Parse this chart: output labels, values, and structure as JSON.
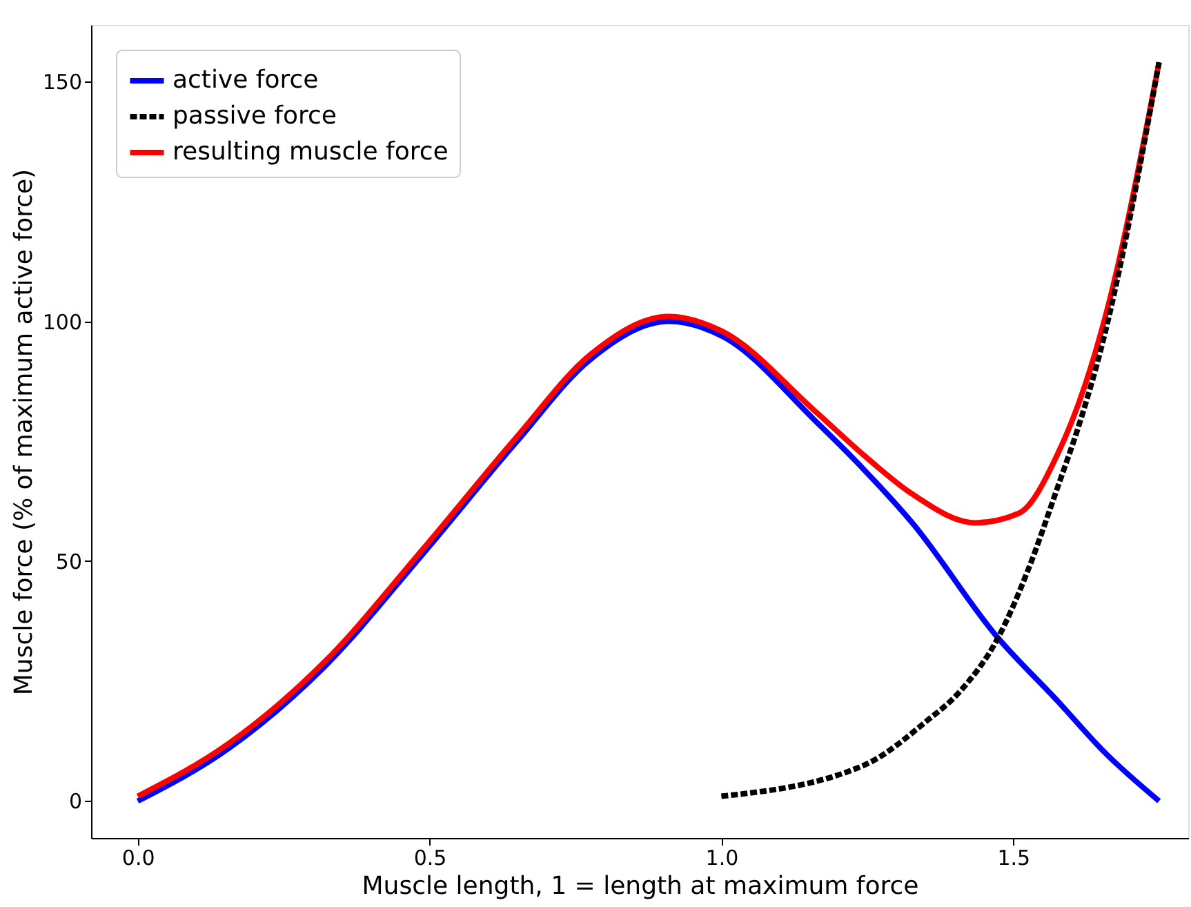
{
  "chart_data": {
    "type": "line",
    "xlabel": "Muscle length, 1 = length at maximum force",
    "ylabel": "Muscle force (% of maximum active force)",
    "xlim": [
      -0.08,
      1.8
    ],
    "ylim": [
      -7.7,
      161.8
    ],
    "xticks": [
      {
        "value": 0,
        "label": "0.0"
      },
      0.5,
      {
        "value": 1,
        "label": "1.0"
      },
      1.5
    ],
    "yticks": [
      0,
      50,
      100,
      150
    ],
    "legend": "top left",
    "marker": "none",
    "series": [
      {
        "name": "active force",
        "color": "#0000ff",
        "line_style": "solid",
        "x": [
          0,
          0.156,
          0.32,
          0.485,
          0.65,
          0.775,
          0.91,
          1.0,
          1.163,
          1.245,
          1.327,
          1.474,
          1.575,
          1.658,
          1.75
        ],
        "values": [
          0,
          11,
          28,
          51,
          75,
          92,
          100,
          97,
          79,
          69,
          58,
          34,
          21,
          10,
          0
        ]
      },
      {
        "name": "passive force",
        "color": "#000000",
        "line_style": "dashed",
        "x": [
          1.0,
          1.245,
          1.35,
          1.41,
          1.474,
          1.525,
          1.575,
          1.617,
          1.65,
          1.75
        ],
        "values": [
          1,
          7.5,
          16.5,
          23,
          34,
          48,
          65,
          80,
          94,
          154
        ]
      },
      {
        "name": "resulting muscle force",
        "color": "#ff0000",
        "line_style": "solid",
        "x": [
          0,
          0.156,
          0.32,
          0.485,
          0.65,
          0.775,
          0.91,
          1.0,
          1.163,
          1.245,
          1.327,
          1.435,
          1.51,
          1.575,
          1.624,
          1.658,
          1.75
        ],
        "values": [
          1,
          12,
          29,
          52,
          76,
          93,
          101,
          98,
          81,
          72,
          64,
          58,
          60,
          72,
          87,
          101,
          154
        ]
      }
    ]
  }
}
